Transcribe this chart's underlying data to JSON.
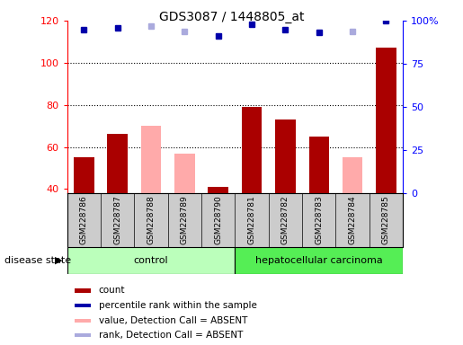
{
  "title": "GDS3087 / 1448805_at",
  "samples": [
    "GSM228786",
    "GSM228787",
    "GSM228788",
    "GSM228789",
    "GSM228790",
    "GSM228781",
    "GSM228782",
    "GSM228783",
    "GSM228784",
    "GSM228785"
  ],
  "groups": [
    "control",
    "control",
    "control",
    "control",
    "control",
    "hepatocellular carcinoma",
    "hepatocellular carcinoma",
    "hepatocellular carcinoma",
    "hepatocellular carcinoma",
    "hepatocellular carcinoma"
  ],
  "count_values": [
    55,
    66,
    null,
    null,
    41,
    79,
    73,
    65,
    null,
    107
  ],
  "count_absent": [
    null,
    null,
    70,
    57,
    null,
    null,
    null,
    null,
    55,
    null
  ],
  "percentile_values": [
    95,
    96,
    null,
    null,
    91,
    98,
    95,
    93,
    null,
    100
  ],
  "percentile_absent": [
    null,
    null,
    97,
    94,
    null,
    null,
    null,
    null,
    94,
    null
  ],
  "ylim_left": [
    38,
    120
  ],
  "ylim_right": [
    0,
    100
  ],
  "yticks_left": [
    40,
    60,
    80,
    100,
    120
  ],
  "yticks_right": [
    0,
    25,
    50,
    75,
    100
  ],
  "ytick_labels_right": [
    "0",
    "25",
    "50",
    "75",
    "100%"
  ],
  "bar_color_present": "#aa0000",
  "bar_color_absent": "#ffaaaa",
  "dot_color_present": "#0000aa",
  "dot_color_absent": "#aaaadd",
  "control_color": "#bbffbb",
  "carcinoma_color": "#55ee55",
  "bg_color": "#cccccc",
  "legend_items": [
    "count",
    "percentile rank within the sample",
    "value, Detection Call = ABSENT",
    "rank, Detection Call = ABSENT"
  ],
  "legend_colors": [
    "#aa0000",
    "#0000aa",
    "#ffaaaa",
    "#aaaadd"
  ]
}
